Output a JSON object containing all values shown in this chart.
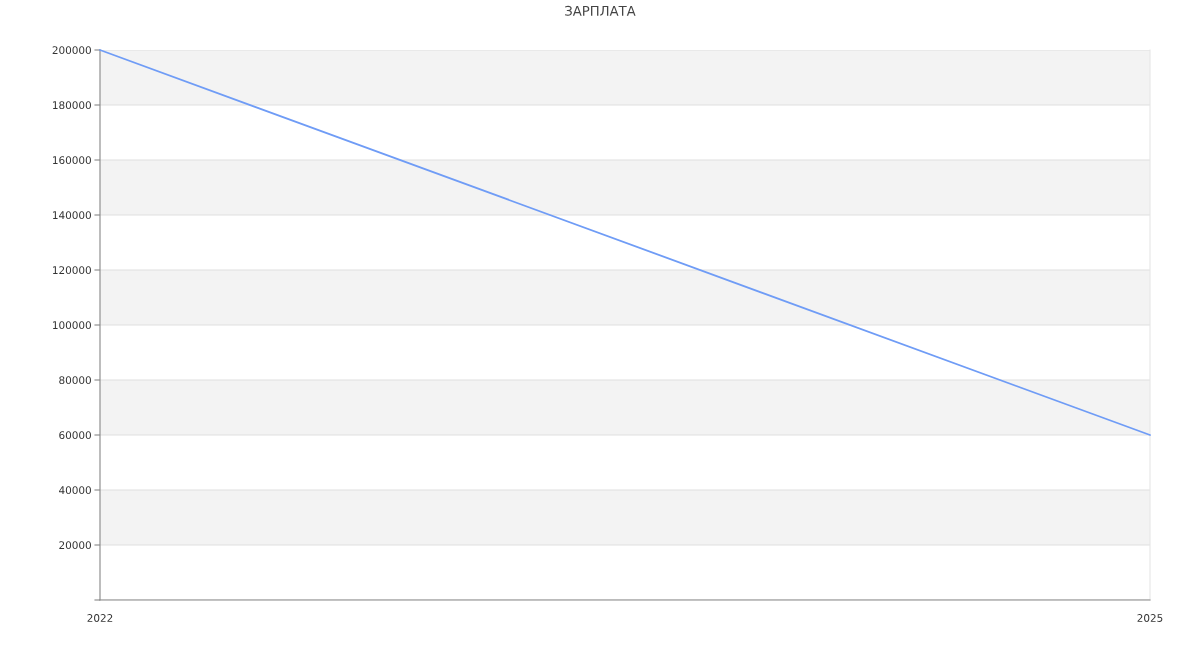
{
  "chart_data": {
    "type": "line",
    "title": "ЗАРПЛАТА",
    "x": [
      2022,
      2025
    ],
    "series": [
      {
        "color": "#6f9cf6",
        "values": [
          200000,
          60000
        ]
      }
    ],
    "xlim": [
      2022,
      2025
    ],
    "xticks": [
      2022,
      2025
    ],
    "ylim": [
      0,
      200000
    ],
    "yticks": [
      {
        "value": 0,
        "label": null
      },
      20000,
      40000,
      60000,
      80000,
      100000,
      120000,
      140000,
      160000,
      180000,
      200000
    ],
    "grid": "y",
    "marker": "none",
    "line_style": "solid"
  }
}
